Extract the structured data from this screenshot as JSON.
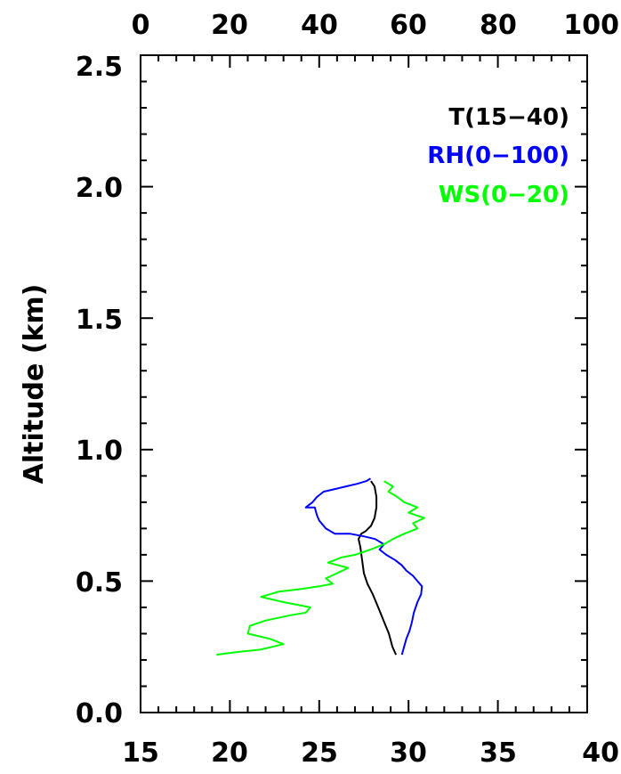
{
  "chart_data": {
    "type": "line",
    "ylabel": "Altitude (km)",
    "ylim": [
      0.0,
      2.5
    ],
    "y_ticks": [
      "0.0",
      "0.5",
      "1.0",
      "1.5",
      "2.0",
      "2.5"
    ],
    "y_tick_values": [
      0.0,
      0.5,
      1.0,
      1.5,
      2.0,
      2.5
    ],
    "x_bottom": {
      "lim": [
        15,
        40
      ],
      "ticks": [
        "15",
        "20",
        "25",
        "30",
        "35",
        "40"
      ],
      "tick_values": [
        15,
        20,
        25,
        30,
        35,
        40
      ]
    },
    "x_top": {
      "lim": [
        0,
        100
      ],
      "ticks": [
        "0",
        "20",
        "40",
        "60",
        "80",
        "100"
      ],
      "tick_values": [
        0,
        20,
        40,
        60,
        80,
        100
      ]
    },
    "legend_position": "top-right",
    "series": [
      {
        "name": "T(15−40)",
        "color": "#000000",
        "axis": "bottom",
        "points": [
          [
            29.3,
            0.22
          ],
          [
            29.1,
            0.25
          ],
          [
            28.9,
            0.3
          ],
          [
            28.6,
            0.35
          ],
          [
            28.3,
            0.4
          ],
          [
            28.0,
            0.45
          ],
          [
            27.7,
            0.49
          ],
          [
            27.5,
            0.53
          ],
          [
            27.4,
            0.58
          ],
          [
            27.3,
            0.63
          ],
          [
            27.2,
            0.66
          ],
          [
            27.35,
            0.68
          ],
          [
            27.6,
            0.69
          ],
          [
            27.9,
            0.71
          ],
          [
            28.1,
            0.74
          ],
          [
            28.2,
            0.78
          ],
          [
            28.2,
            0.82
          ],
          [
            28.1,
            0.86
          ],
          [
            27.9,
            0.88
          ]
        ]
      },
      {
        "name": "RH(0−100)",
        "color": "#0000ff",
        "axis": "top",
        "points": [
          [
            58.5,
            0.22
          ],
          [
            59.0,
            0.25
          ],
          [
            59.5,
            0.28
          ],
          [
            60.2,
            0.31
          ],
          [
            60.7,
            0.34
          ],
          [
            61.2,
            0.38
          ],
          [
            62.0,
            0.42
          ],
          [
            62.8,
            0.45
          ],
          [
            63.0,
            0.48
          ],
          [
            62.0,
            0.5
          ],
          [
            61.0,
            0.52
          ],
          [
            59.5,
            0.54
          ],
          [
            58.5,
            0.56
          ],
          [
            57.0,
            0.58
          ],
          [
            55.0,
            0.6
          ],
          [
            53.5,
            0.62
          ],
          [
            54.5,
            0.64
          ],
          [
            52.5,
            0.66
          ],
          [
            50.0,
            0.67
          ],
          [
            47.0,
            0.68
          ],
          [
            43.5,
            0.68
          ],
          [
            41.5,
            0.7
          ],
          [
            40.0,
            0.73
          ],
          [
            39.5,
            0.75
          ],
          [
            39.0,
            0.78
          ],
          [
            37.0,
            0.78
          ],
          [
            38.5,
            0.8
          ],
          [
            39.5,
            0.82
          ],
          [
            41.0,
            0.84
          ],
          [
            43.5,
            0.85
          ],
          [
            46.0,
            0.86
          ],
          [
            48.5,
            0.87
          ],
          [
            50.5,
            0.88
          ],
          [
            51.5,
            0.89
          ]
        ]
      },
      {
        "name": "WS(0−20)",
        "color": "#00ff00",
        "axis": "top",
        "points": [
          [
            17.0,
            0.22
          ],
          [
            21.5,
            0.23
          ],
          [
            27.0,
            0.24
          ],
          [
            32.0,
            0.26
          ],
          [
            29.0,
            0.28
          ],
          [
            24.0,
            0.3
          ],
          [
            24.5,
            0.33
          ],
          [
            28.0,
            0.35
          ],
          [
            33.5,
            0.37
          ],
          [
            37.0,
            0.38
          ],
          [
            38.0,
            0.4
          ],
          [
            32.0,
            0.42
          ],
          [
            27.0,
            0.44
          ],
          [
            31.0,
            0.46
          ],
          [
            36.0,
            0.47
          ],
          [
            40.0,
            0.48
          ],
          [
            43.0,
            0.49
          ],
          [
            41.5,
            0.51
          ],
          [
            44.0,
            0.53
          ],
          [
            46.5,
            0.55
          ],
          [
            42.0,
            0.57
          ],
          [
            45.0,
            0.59
          ],
          [
            48.0,
            0.6
          ],
          [
            51.5,
            0.62
          ],
          [
            54.5,
            0.64
          ],
          [
            56.5,
            0.66
          ],
          [
            59.0,
            0.68
          ],
          [
            62.0,
            0.7
          ],
          [
            61.0,
            0.72
          ],
          [
            63.5,
            0.74
          ],
          [
            60.0,
            0.76
          ],
          [
            62.0,
            0.78
          ],
          [
            59.0,
            0.8
          ],
          [
            57.5,
            0.82
          ],
          [
            55.5,
            0.84
          ],
          [
            56.5,
            0.86
          ],
          [
            54.5,
            0.88
          ]
        ]
      }
    ]
  }
}
